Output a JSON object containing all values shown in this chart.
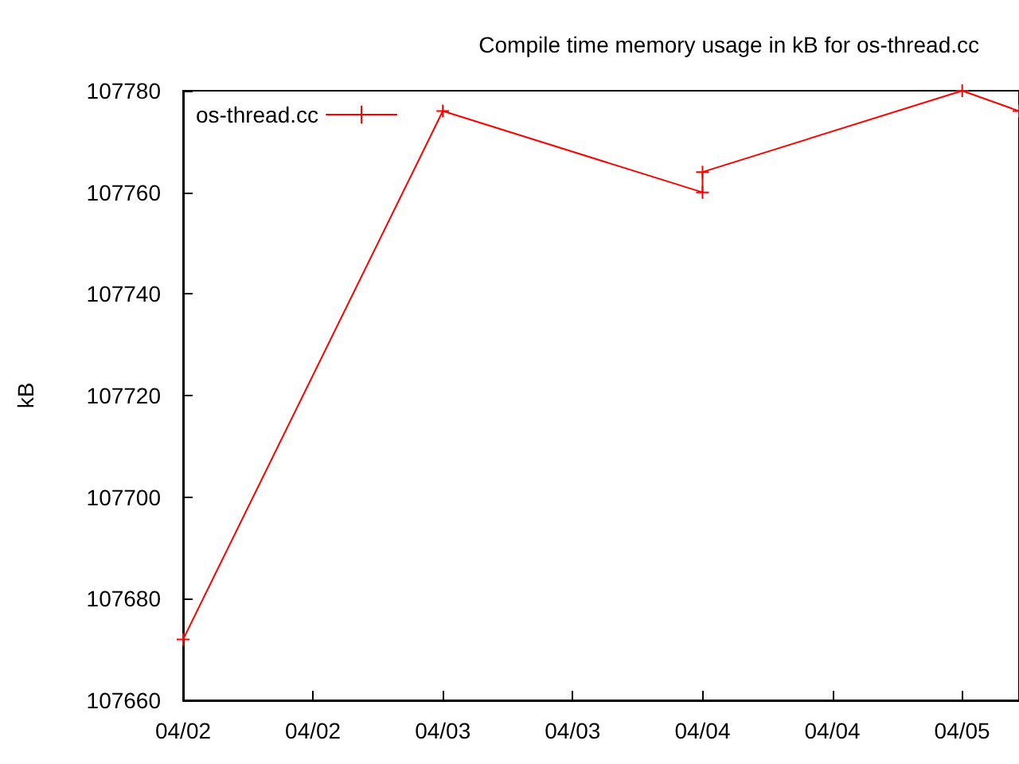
{
  "chart_data": {
    "type": "line",
    "title": "Compile time memory usage in kB for os-thread.cc",
    "ylabel": "kB",
    "x": [
      "--04-02T00:00",
      "--04-03T00:00",
      "--04-04T00:00",
      "--04-04T00:00",
      "--04-05T00:00",
      "--04-05T05:15"
    ],
    "series": [
      {
        "name": "os-thread.cc",
        "color": "#ff0000",
        "values": [
          107672,
          107776,
          107760,
          107764,
          107780,
          107776
        ]
      }
    ],
    "xlim": [
      "--04-02T00:00",
      "--04-05T05:15"
    ],
    "xticks": [
      {
        "value": "--04-02T00:00",
        "label": "04/02"
      },
      {
        "value": "--04-02T12:00",
        "label": "04/02"
      },
      {
        "value": "--04-03T00:00",
        "label": "04/03"
      },
      {
        "value": "--04-03T12:00",
        "label": "04/03"
      },
      {
        "value": "--04-04T00:00",
        "label": "04/04"
      },
      {
        "value": "--04-04T12:00",
        "label": "04/04"
      },
      {
        "value": "--04-05T00:00",
        "label": "04/05"
      }
    ],
    "ylim": [
      107660,
      107780
    ],
    "yticks": [
      107660,
      107680,
      107700,
      107720,
      107740,
      107760,
      107780
    ],
    "grid": false,
    "legend": "top left",
    "marker": "cross",
    "line_style": "solid"
  }
}
